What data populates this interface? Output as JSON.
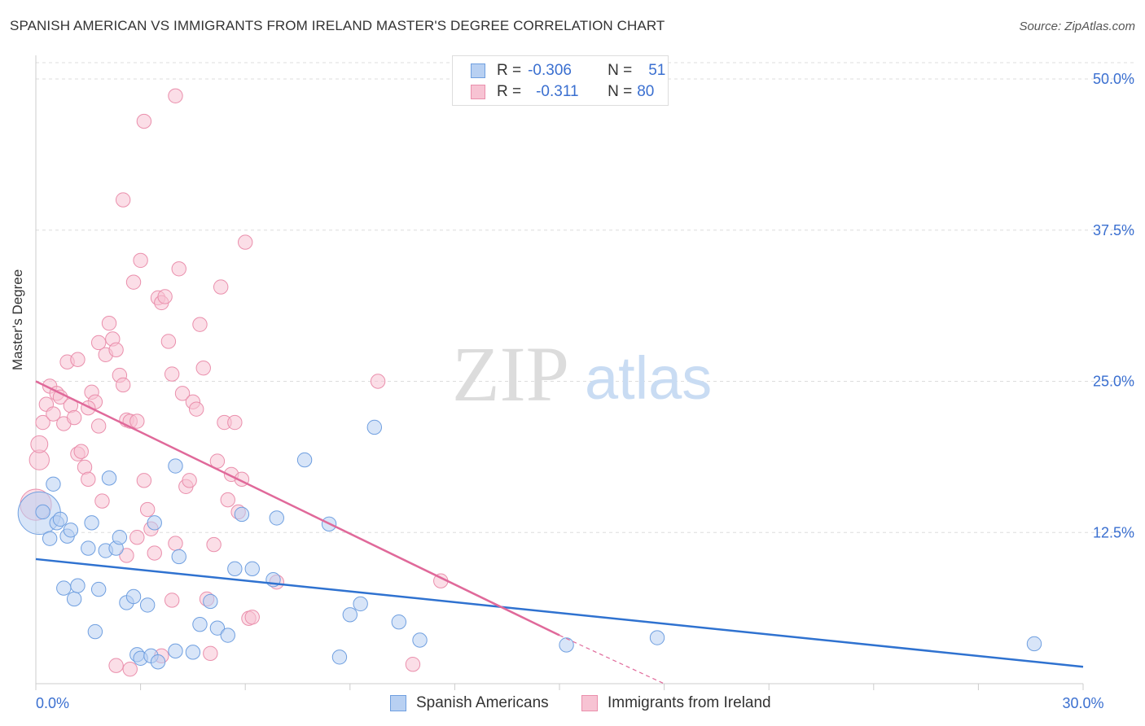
{
  "title": "SPANISH AMERICAN VS IMMIGRANTS FROM IRELAND MASTER'S DEGREE CORRELATION CHART",
  "source": "Source: ZipAtlas.com",
  "watermark": {
    "zip": "ZIP",
    "atlas": "atlas"
  },
  "legend": {
    "series1": {
      "r_label": "R =",
      "r_value": "-0.306",
      "n_label": "N =",
      "n_value": "51"
    },
    "series2": {
      "r_label": "R =",
      "r_value": "-0.311",
      "n_label": "N =",
      "n_value": "80"
    }
  },
  "colors": {
    "blue_fill": "#b8d0f2",
    "blue_stroke": "#6f9fe0",
    "blue_line": "#2f72d0",
    "pink_fill": "#f7c3d3",
    "pink_stroke": "#ea8fac",
    "pink_line": "#e0699a",
    "tick_text": "#3a6fd0",
    "grid": "#dddddd"
  },
  "chart_data": {
    "type": "scatter",
    "title": "SPANISH AMERICAN VS IMMIGRANTS FROM IRELAND MASTER'S DEGREE CORRELATION CHART",
    "xlabel": "",
    "ylabel": "Master's Degree",
    "xlim": [
      0,
      30
    ],
    "ylim": [
      0,
      50
    ],
    "x_ticks": [
      0,
      3,
      6,
      9,
      12,
      15,
      18,
      21,
      24,
      27,
      30
    ],
    "x_tick_labels": {
      "0": "0.0%",
      "30": "30.0%"
    },
    "y_ticks": [
      12.5,
      25.0,
      37.5,
      50.0
    ],
    "y_tick_labels": [
      "12.5%",
      "25.0%",
      "37.5%",
      "50.0%"
    ],
    "grid": true,
    "legend_position": "top-center",
    "series": [
      {
        "name": "Spanish Americans",
        "color": "#6f9fe0",
        "points": [
          [
            0.1,
            14.1
          ],
          [
            0.4,
            12.0
          ],
          [
            0.5,
            16.5
          ],
          [
            0.6,
            13.3
          ],
          [
            0.7,
            13.6
          ],
          [
            0.8,
            7.9
          ],
          [
            0.9,
            12.2
          ],
          [
            1.0,
            12.7
          ],
          [
            1.1,
            7.0
          ],
          [
            1.2,
            8.1
          ],
          [
            1.5,
            11.2
          ],
          [
            1.6,
            13.3
          ],
          [
            1.7,
            4.3
          ],
          [
            1.8,
            7.8
          ],
          [
            2.0,
            11.0
          ],
          [
            2.1,
            17.0
          ],
          [
            2.3,
            11.2
          ],
          [
            2.4,
            12.1
          ],
          [
            2.6,
            6.7
          ],
          [
            2.8,
            7.2
          ],
          [
            2.9,
            2.4
          ],
          [
            3.0,
            2.1
          ],
          [
            3.2,
            6.5
          ],
          [
            3.3,
            2.3
          ],
          [
            3.4,
            13.3
          ],
          [
            3.5,
            1.8
          ],
          [
            4.0,
            2.7
          ],
          [
            4.1,
            10.5
          ],
          [
            4.5,
            2.6
          ],
          [
            4.7,
            4.9
          ],
          [
            5.0,
            6.8
          ],
          [
            5.2,
            4.6
          ],
          [
            5.5,
            4.0
          ],
          [
            5.7,
            9.5
          ],
          [
            5.9,
            14.0
          ],
          [
            6.2,
            9.5
          ],
          [
            6.8,
            8.6
          ],
          [
            6.9,
            13.7
          ],
          [
            7.7,
            18.5
          ],
          [
            8.4,
            13.2
          ],
          [
            8.7,
            2.2
          ],
          [
            9.0,
            5.7
          ],
          [
            9.3,
            6.6
          ],
          [
            9.7,
            21.2
          ],
          [
            10.4,
            5.1
          ],
          [
            11.0,
            3.6
          ],
          [
            15.2,
            3.2
          ],
          [
            17.8,
            3.8
          ],
          [
            28.6,
            3.3
          ],
          [
            4.0,
            18.0
          ],
          [
            0.2,
            14.2
          ]
        ],
        "sizes": [
          30,
          10,
          10,
          10,
          10,
          10,
          10,
          10,
          10,
          10,
          10,
          10,
          10,
          10,
          10,
          10,
          10,
          10,
          10,
          10,
          10,
          10,
          10,
          10,
          10,
          10,
          10,
          10,
          10,
          10,
          10,
          10,
          10,
          10,
          10,
          10,
          10,
          10,
          10,
          10,
          10,
          10,
          10,
          10,
          10,
          10,
          10,
          10,
          10,
          10,
          10
        ],
        "trend": {
          "x": [
            0,
            30
          ],
          "y": [
            10.3,
            1.4
          ]
        }
      },
      {
        "name": "Immigrants from Ireland",
        "color": "#ea8fac",
        "points": [
          [
            0.0,
            14.8
          ],
          [
            0.1,
            18.5
          ],
          [
            0.1,
            19.8
          ],
          [
            0.2,
            21.6
          ],
          [
            0.3,
            23.1
          ],
          [
            0.4,
            24.6
          ],
          [
            0.5,
            22.3
          ],
          [
            0.6,
            24.0
          ],
          [
            0.7,
            23.7
          ],
          [
            0.8,
            21.5
          ],
          [
            0.9,
            26.6
          ],
          [
            1.0,
            23.0
          ],
          [
            1.1,
            22.0
          ],
          [
            1.2,
            19.0
          ],
          [
            1.3,
            19.2
          ],
          [
            1.4,
            17.9
          ],
          [
            1.5,
            16.9
          ],
          [
            1.6,
            24.1
          ],
          [
            1.7,
            23.3
          ],
          [
            1.8,
            21.3
          ],
          [
            1.9,
            15.1
          ],
          [
            2.0,
            27.2
          ],
          [
            2.1,
            29.8
          ],
          [
            2.2,
            28.5
          ],
          [
            2.3,
            27.6
          ],
          [
            2.4,
            25.5
          ],
          [
            2.5,
            24.7
          ],
          [
            2.6,
            21.8
          ],
          [
            2.7,
            21.7
          ],
          [
            2.8,
            33.2
          ],
          [
            2.9,
            21.7
          ],
          [
            3.0,
            35.0
          ],
          [
            3.1,
            16.8
          ],
          [
            3.2,
            14.4
          ],
          [
            3.3,
            12.8
          ],
          [
            3.4,
            10.8
          ],
          [
            3.5,
            31.9
          ],
          [
            3.6,
            31.5
          ],
          [
            3.7,
            32.0
          ],
          [
            3.8,
            28.3
          ],
          [
            3.9,
            25.6
          ],
          [
            4.0,
            11.6
          ],
          [
            4.1,
            34.3
          ],
          [
            4.2,
            24.0
          ],
          [
            4.3,
            16.3
          ],
          [
            4.4,
            16.8
          ],
          [
            4.5,
            23.3
          ],
          [
            4.6,
            22.7
          ],
          [
            4.7,
            29.7
          ],
          [
            4.8,
            26.1
          ],
          [
            4.9,
            7.0
          ],
          [
            5.0,
            2.5
          ],
          [
            5.1,
            11.5
          ],
          [
            5.2,
            18.4
          ],
          [
            5.3,
            32.8
          ],
          [
            5.4,
            21.6
          ],
          [
            5.5,
            15.2
          ],
          [
            5.6,
            17.3
          ],
          [
            5.7,
            21.6
          ],
          [
            5.8,
            14.2
          ],
          [
            5.9,
            16.9
          ],
          [
            6.0,
            36.5
          ],
          [
            6.1,
            5.4
          ],
          [
            6.2,
            5.5
          ],
          [
            6.9,
            8.4
          ],
          [
            9.8,
            25.0
          ],
          [
            10.8,
            1.6
          ],
          [
            11.6,
            8.5
          ],
          [
            3.1,
            46.5
          ],
          [
            4.0,
            48.6
          ],
          [
            2.5,
            40.0
          ],
          [
            1.2,
            26.8
          ],
          [
            1.5,
            22.8
          ],
          [
            1.8,
            28.2
          ],
          [
            2.9,
            12.1
          ],
          [
            3.9,
            6.9
          ],
          [
            2.3,
            1.5
          ],
          [
            2.7,
            1.2
          ],
          [
            3.6,
            2.3
          ],
          [
            2.6,
            10.6
          ]
        ],
        "sizes": [
          22,
          14,
          12,
          10,
          10,
          10,
          10,
          10,
          10,
          10,
          10,
          10,
          10,
          10,
          10,
          10,
          10,
          10,
          10,
          10,
          10,
          10,
          10,
          10,
          10,
          10,
          10,
          10,
          10,
          10,
          10,
          10,
          10,
          10,
          10,
          10,
          10,
          10,
          10,
          10,
          10,
          10,
          10,
          10,
          10,
          10,
          10,
          10,
          10,
          10,
          10,
          10,
          10,
          10,
          10,
          10,
          10,
          10,
          10,
          10,
          10,
          10,
          10,
          10,
          10,
          10,
          10,
          10,
          10,
          10,
          10,
          10,
          10,
          10,
          10,
          10,
          10,
          10,
          10,
          10
        ],
        "trend": {
          "x": [
            0,
            15.0
          ],
          "y": [
            25.0,
            4.0
          ]
        },
        "trend_dashed": {
          "x": [
            15.0,
            18.0
          ],
          "y": [
            4.0,
            0.0
          ]
        }
      }
    ]
  }
}
